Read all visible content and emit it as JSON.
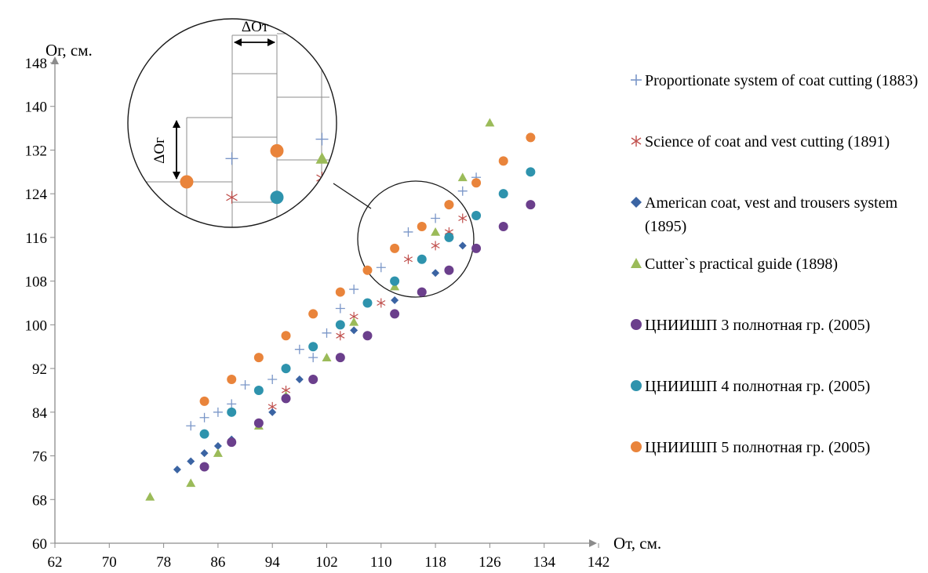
{
  "chart_data": {
    "type": "scatter",
    "xlabel": "От, см.",
    "ylabel": "Ог, см.",
    "xlim": [
      62,
      142
    ],
    "ylim": [
      60,
      148
    ],
    "xticks": [
      62,
      70,
      78,
      86,
      94,
      102,
      110,
      118,
      126,
      134,
      142
    ],
    "yticks": [
      60,
      68,
      76,
      84,
      92,
      100,
      108,
      116,
      124,
      132,
      140,
      148
    ],
    "grid": false,
    "legend_position": "right",
    "inset_labels": {
      "dy": "ΔОг",
      "dx": "ΔОт"
    },
    "series": [
      {
        "name": "Proportionate system of coat cutting (1883)",
        "marker": "plus",
        "color": "#7a96c8",
        "points": [
          [
            82,
            81.5
          ],
          [
            84,
            83
          ],
          [
            86,
            84
          ],
          [
            88,
            85.5
          ],
          [
            90,
            89
          ],
          [
            94,
            90
          ],
          [
            96,
            92
          ],
          [
            100,
            94
          ],
          [
            98,
            95.5
          ],
          [
            102,
            98.5
          ],
          [
            104,
            103
          ],
          [
            106,
            106.5
          ],
          [
            110,
            110.5
          ],
          [
            114,
            117
          ],
          [
            118,
            119.5
          ],
          [
            120,
            122
          ],
          [
            122,
            124.5
          ],
          [
            124,
            127
          ]
        ]
      },
      {
        "name": "Science of coat and vest cutting (1891)",
        "marker": "asterisk",
        "color": "#c0504d",
        "points": [
          [
            94,
            85
          ],
          [
            96,
            88
          ],
          [
            104,
            98
          ],
          [
            106,
            101.5
          ],
          [
            110,
            104
          ],
          [
            114,
            112
          ],
          [
            118,
            114.5
          ],
          [
            120,
            117
          ],
          [
            122,
            119.5
          ]
        ]
      },
      {
        "name": "American coat, vest and trousers system (1895)",
        "marker": "diamond",
        "color": "#3b64a3",
        "points": [
          [
            80,
            73.5
          ],
          [
            82,
            75
          ],
          [
            84,
            76.5
          ],
          [
            86,
            77.8
          ],
          [
            88,
            79
          ],
          [
            92,
            82
          ],
          [
            94,
            84
          ],
          [
            98,
            90
          ],
          [
            106,
            99
          ],
          [
            112,
            104.5
          ],
          [
            118,
            109.5
          ],
          [
            122,
            114.5
          ]
        ]
      },
      {
        "name": "Cutter`s practical guide (1898)",
        "marker": "triangle",
        "color": "#9bbb59",
        "points": [
          [
            76,
            68.5
          ],
          [
            82,
            71
          ],
          [
            86,
            76.5
          ],
          [
            92,
            81.5
          ],
          [
            96,
            87
          ],
          [
            102,
            94
          ],
          [
            106,
            100.5
          ],
          [
            112,
            107
          ],
          [
            118,
            117
          ],
          [
            122,
            127
          ],
          [
            126,
            137
          ]
        ]
      },
      {
        "name": "ЦНИИШП 3 полнотная гр. (2005)",
        "marker": "circle",
        "color": "#6b3f8c",
        "points": [
          [
            84,
            74
          ],
          [
            88,
            78.5
          ],
          [
            92,
            82
          ],
          [
            96,
            86.5
          ],
          [
            100,
            90
          ],
          [
            104,
            94
          ],
          [
            108,
            98
          ],
          [
            112,
            102
          ],
          [
            116,
            106
          ],
          [
            120,
            110
          ],
          [
            124,
            114
          ],
          [
            128,
            118
          ],
          [
            132,
            122
          ]
        ]
      },
      {
        "name": "ЦНИИШП 4 полнотная гр. (2005)",
        "marker": "circle",
        "color": "#2e93ad",
        "points": [
          [
            84,
            80
          ],
          [
            88,
            84
          ],
          [
            92,
            88
          ],
          [
            96,
            92
          ],
          [
            100,
            96
          ],
          [
            104,
            100
          ],
          [
            108,
            104
          ],
          [
            112,
            108
          ],
          [
            116,
            112
          ],
          [
            120,
            116
          ],
          [
            124,
            120
          ],
          [
            128,
            124
          ],
          [
            132,
            128
          ]
        ]
      },
      {
        "name": "ЦНИИШП 5 полнотная гр. (2005)",
        "marker": "circle",
        "color": "#e9843b",
        "points": [
          [
            84,
            86
          ],
          [
            88,
            90
          ],
          [
            92,
            94
          ],
          [
            96,
            98
          ],
          [
            100,
            102
          ],
          [
            104,
            106
          ],
          [
            108,
            110
          ],
          [
            112,
            114
          ],
          [
            116,
            118
          ],
          [
            120,
            122
          ],
          [
            124,
            126
          ],
          [
            128,
            130
          ],
          [
            132,
            134.3
          ]
        ]
      }
    ],
    "legend": [
      "Proportionate system of coat cutting (1883)",
      "Science of coat and vest cutting (1891)",
      "American coat, vest and trousers system (1895)",
      "Cutter`s practical guide (1898)",
      "ЦНИИШП 3 полнотная гр. (2005)",
      "ЦНИИШП 4 полнотная гр. (2005)",
      "ЦНИИШП 5 полнотная гр. (2005)"
    ]
  }
}
